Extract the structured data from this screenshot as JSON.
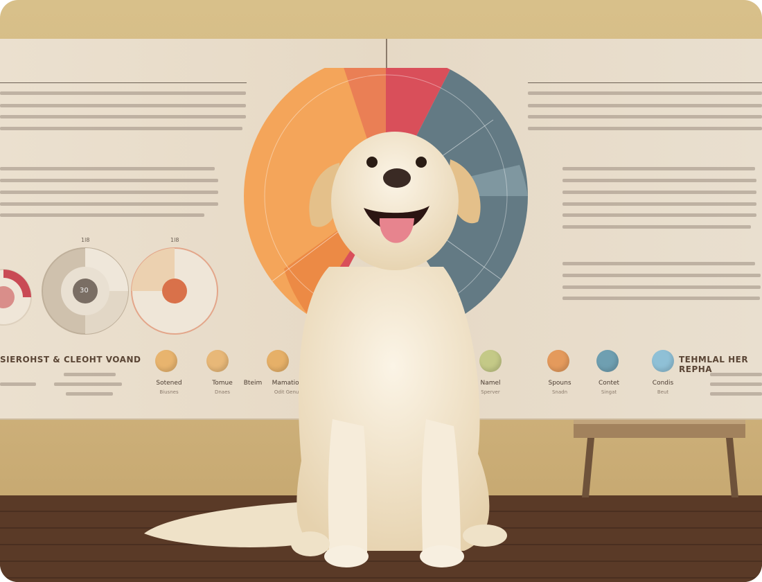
{
  "board": {
    "left_heading": "SIEROHST & CLEOHT VOAND",
    "right_heading": "TEHMLAL HER REPHA",
    "donut_center_label": "30",
    "donut_top_labels": [
      "1l8",
      "1l8"
    ],
    "icons": [
      {
        "label": "Sotened",
        "sub": "Biusnes",
        "color": "#e8b46e"
      },
      {
        "label": "Tomue",
        "sub": "Dnaes",
        "color": "#e8b878"
      },
      {
        "label": "Bteim",
        "sub": "",
        "color": ""
      },
      {
        "label": "Mamation",
        "sub": "Odit Genut",
        "color": "#e6b068"
      },
      {
        "label": "Namel",
        "sub": "Sperver",
        "color": "#c4c987"
      },
      {
        "label": "Spouns",
        "sub": "Snadn",
        "color": "#e49a5c"
      },
      {
        "label": "Contet",
        "sub": "Singat",
        "color": "#6f9fb1"
      },
      {
        "label": "Condis",
        "sub": "Beut",
        "color": "#8fc0d6"
      }
    ]
  },
  "colors": {
    "orange": "#f4a55a",
    "red": "#d94f5a",
    "slate": "#637a84",
    "dog": "#f1e4cc",
    "floor": "#5a3a27"
  }
}
